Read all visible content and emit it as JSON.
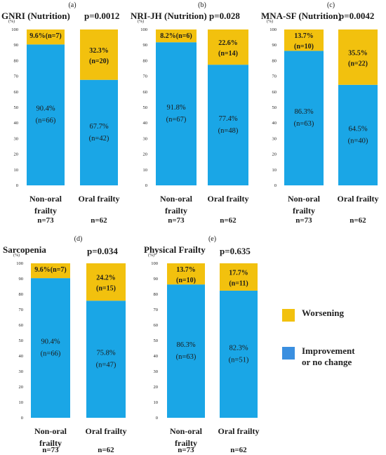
{
  "colors": {
    "worsening": "#F2C10E",
    "improvement": "#1AA6E6",
    "accent_green": "#7ED321",
    "accent_purple": "#9B59B6",
    "legend_blue": "#3A8FE0"
  },
  "legend": [
    {
      "label": "Worsening",
      "color": "#F2C10E"
    },
    {
      "label": "Improvement\nor no change",
      "color": "#3A8FE0"
    }
  ],
  "chart_data": [
    {
      "type": "bar",
      "stacked": true,
      "panel": "(a)",
      "title": "GNRI (Nutrition)",
      "ylabel": "(%)",
      "p_value": "p=0.0012",
      "ylim": [
        0,
        100
      ],
      "y_ticks": [
        "0",
        "10",
        "20",
        "30",
        "40",
        "50",
        "60",
        "70",
        "80",
        "90",
        "100"
      ],
      "categories": [
        {
          "label": "Non-oral\nfrailty",
          "n": "n=73"
        },
        {
          "label": "Oral frailty",
          "n": "n=62"
        }
      ],
      "series": [
        {
          "name": "Improvement or no change",
          "values": [
            90.4,
            67.7
          ],
          "labels": [
            [
              "90.4%",
              "(n=66)"
            ],
            [
              "67.7%",
              "(n=42)"
            ]
          ]
        },
        {
          "name": "Worsening",
          "values": [
            9.6,
            32.3
          ],
          "labels": [
            [
              "9.6%(n=7)"
            ],
            [
              "32.3%",
              "(n=20)"
            ]
          ]
        }
      ]
    },
    {
      "type": "bar",
      "stacked": true,
      "panel": "(b)",
      "title": "NRI-JH (Nutrition)",
      "ylabel": "(%)",
      "p_value": "p=0.028",
      "ylim": [
        0,
        100
      ],
      "y_ticks": [
        "0",
        "10",
        "20",
        "30",
        "40",
        "50",
        "60",
        "70",
        "80",
        "90",
        "100"
      ],
      "categories": [
        {
          "label": "Non-oral\nfrailty",
          "n": "n=73"
        },
        {
          "label": "Oral frailty",
          "n": "n=62"
        }
      ],
      "series": [
        {
          "name": "Improvement or no change",
          "values": [
            91.8,
            77.4
          ],
          "labels": [
            [
              "91.8%",
              "(n=67)"
            ],
            [
              "77.4%",
              "(n=48)"
            ]
          ]
        },
        {
          "name": "Worsening",
          "values": [
            8.2,
            22.6
          ],
          "labels": [
            [
              "8.2%(n=6)"
            ],
            [
              "22.6%",
              "(n=14)"
            ]
          ]
        }
      ]
    },
    {
      "type": "bar",
      "stacked": true,
      "panel": "(c)",
      "title": "MNA-SF (Nutrition)",
      "ylabel": "(%)",
      "p_value": "p=0.0042",
      "ylim": [
        0,
        100
      ],
      "y_ticks": [
        "0",
        "10",
        "20",
        "30",
        "40",
        "50",
        "60",
        "70",
        "80",
        "90",
        "100"
      ],
      "categories": [
        {
          "label": "Non-oral\nfrailty",
          "n": "n=73"
        },
        {
          "label": "Oral frailty",
          "n": "n=62"
        }
      ],
      "series": [
        {
          "name": "Improvement or no change",
          "values": [
            86.3,
            64.5
          ],
          "labels": [
            [
              "86.3%",
              "(n=63)"
            ],
            [
              "64.5%",
              "(n=40)"
            ]
          ]
        },
        {
          "name": "Worsening",
          "values": [
            13.7,
            35.5
          ],
          "labels": [
            [
              "13.7%",
              "(n=10)"
            ],
            [
              "35.5%",
              "(n=22)"
            ]
          ]
        }
      ]
    },
    {
      "type": "bar",
      "stacked": true,
      "panel": "(d)",
      "title": "Sarcopenia",
      "ylabel": "(%)",
      "p_value": "p=0.034",
      "ylim": [
        0,
        100
      ],
      "y_ticks": [
        "0",
        "10",
        "20",
        "30",
        "40",
        "50",
        "60",
        "70",
        "80",
        "90",
        "100"
      ],
      "categories": [
        {
          "label": "Non-oral\nfrailty",
          "n": "n=73"
        },
        {
          "label": "Oral frailty",
          "n": "n=62"
        }
      ],
      "series": [
        {
          "name": "Improvement or no change",
          "values": [
            90.4,
            75.8
          ],
          "labels": [
            [
              "90.4%",
              "(n=66)"
            ],
            [
              "75.8%",
              "(n=47)"
            ]
          ]
        },
        {
          "name": "Worsening",
          "values": [
            9.6,
            24.2
          ],
          "labels": [
            [
              "9.6%(n=7)"
            ],
            [
              "24.2%",
              "(n=15)"
            ]
          ]
        }
      ]
    },
    {
      "type": "bar",
      "stacked": true,
      "panel": "(e)",
      "title": "Physical Frailty",
      "ylabel": "(%)",
      "p_value": "p=0.635",
      "ylim": [
        0,
        100
      ],
      "y_ticks": [
        "0",
        "10",
        "20",
        "30",
        "40",
        "50",
        "60",
        "70",
        "80",
        "90",
        "100"
      ],
      "categories": [
        {
          "label": "Non-oral\nfrailty",
          "n": "n=73"
        },
        {
          "label": "Oral frailty",
          "n": "n=62"
        }
      ],
      "series": [
        {
          "name": "Improvement or no change",
          "values": [
            86.3,
            82.3
          ],
          "labels": [
            [
              "86.3%",
              "(n=63)"
            ],
            [
              "82.3%",
              "(n=51)"
            ]
          ]
        },
        {
          "name": "Worsening",
          "values": [
            13.7,
            17.7
          ],
          "labels": [
            [
              "13.7%",
              "(n=10)"
            ],
            [
              "17.7%",
              "(n=11)"
            ]
          ]
        }
      ]
    }
  ]
}
